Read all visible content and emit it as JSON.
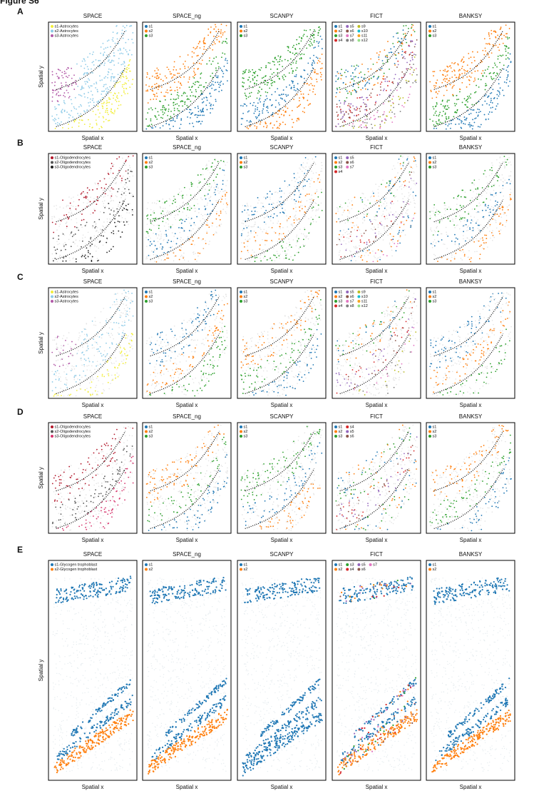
{
  "figure_label": "Figure S6",
  "x_label": "Spatial x",
  "y_label": "Spatial y",
  "rows": [
    {
      "label": "A",
      "panels": [
        {
          "title": "SPACE",
          "legend": [
            [
              {
                "name": "s1-Astrocytes",
                "color": "#f2ee3a"
              },
              {
                "name": "s2-Astrocytes",
                "color": "#8ecbe8"
              },
              {
                "name": "s3-Astrocytes",
                "color": "#b25aa8"
              }
            ]
          ]
        },
        {
          "title": "SPACE_ng",
          "legend": [
            [
              {
                "name": "s1",
                "color": "#1f77b4"
              },
              {
                "name": "s2",
                "color": "#ff7f0e"
              },
              {
                "name": "s3",
                "color": "#2ca02c"
              }
            ]
          ]
        },
        {
          "title": "SCANPY",
          "legend": [
            [
              {
                "name": "s1",
                "color": "#1f77b4"
              },
              {
                "name": "s2",
                "color": "#ff7f0e"
              },
              {
                "name": "s3",
                "color": "#2ca02c"
              }
            ]
          ]
        },
        {
          "title": "FICT",
          "legend": [
            [
              {
                "name": "s1",
                "color": "#1f77b4"
              },
              {
                "name": "s2",
                "color": "#ff7f0e"
              },
              {
                "name": "s3",
                "color": "#2ca02c"
              },
              {
                "name": "s4",
                "color": "#d62728"
              }
            ],
            [
              {
                "name": "s5",
                "color": "#9467bd"
              },
              {
                "name": "s6",
                "color": "#8c564b"
              },
              {
                "name": "s7",
                "color": "#e377c2"
              },
              {
                "name": "s8",
                "color": "#7f7f7f"
              }
            ],
            [
              {
                "name": "s9",
                "color": "#bcbd22"
              },
              {
                "name": "s10",
                "color": "#17becf"
              },
              {
                "name": "s11",
                "color": "#f5a623"
              },
              {
                "name": "s12",
                "color": "#98df8a"
              }
            ]
          ]
        },
        {
          "title": "BANKSY",
          "legend": [
            [
              {
                "name": "s1",
                "color": "#1f77b4"
              },
              {
                "name": "s2",
                "color": "#ff7f0e"
              },
              {
                "name": "s3",
                "color": "#2ca02c"
              }
            ]
          ]
        }
      ]
    },
    {
      "label": "B",
      "panels": [
        {
          "title": "SPACE",
          "legend": [
            [
              {
                "name": "s1-Oligodendrocytes",
                "color": "#b2182b"
              },
              {
                "name": "s2-Oligodendrocytes",
                "color": "#555555"
              },
              {
                "name": "s3-Oligodendrocytes",
                "color": "#222222"
              }
            ]
          ]
        },
        {
          "title": "SPACE_ng",
          "legend": [
            [
              {
                "name": "s1",
                "color": "#1f77b4"
              },
              {
                "name": "s2",
                "color": "#ff7f0e"
              },
              {
                "name": "s3",
                "color": "#2ca02c"
              }
            ]
          ]
        },
        {
          "title": "SCANPY",
          "legend": [
            [
              {
                "name": "s1",
                "color": "#1f77b4"
              },
              {
                "name": "s2",
                "color": "#ff7f0e"
              },
              {
                "name": "s3",
                "color": "#2ca02c"
              }
            ]
          ]
        },
        {
          "title": "FICT",
          "legend": [
            [
              {
                "name": "s1",
                "color": "#1f77b4"
              },
              {
                "name": "s2",
                "color": "#ff7f0e"
              },
              {
                "name": "s3",
                "color": "#2ca02c"
              },
              {
                "name": "s4",
                "color": "#d62728"
              }
            ],
            [
              {
                "name": "s5",
                "color": "#9467bd"
              },
              {
                "name": "s6",
                "color": "#8c564b"
              },
              {
                "name": "s7",
                "color": "#e377c2"
              }
            ]
          ]
        },
        {
          "title": "BANKSY",
          "legend": [
            [
              {
                "name": "s1",
                "color": "#1f77b4"
              },
              {
                "name": "s2",
                "color": "#ff7f0e"
              },
              {
                "name": "s3",
                "color": "#2ca02c"
              }
            ]
          ]
        }
      ]
    },
    {
      "label": "C",
      "panels": [
        {
          "title": "SPACE",
          "legend": [
            [
              {
                "name": "s1-Astrocytes",
                "color": "#f2ee3a"
              },
              {
                "name": "s2-Astrocytes",
                "color": "#8ecbe8"
              },
              {
                "name": "s3-Astrocytes",
                "color": "#b25aa8"
              }
            ]
          ]
        },
        {
          "title": "SPACE_ng",
          "legend": [
            [
              {
                "name": "s1",
                "color": "#1f77b4"
              },
              {
                "name": "s2",
                "color": "#ff7f0e"
              },
              {
                "name": "s3",
                "color": "#2ca02c"
              }
            ]
          ]
        },
        {
          "title": "SCANPY",
          "legend": [
            [
              {
                "name": "s1",
                "color": "#1f77b4"
              },
              {
                "name": "s2",
                "color": "#ff7f0e"
              },
              {
                "name": "s3",
                "color": "#2ca02c"
              }
            ]
          ]
        },
        {
          "title": "FICT",
          "legend": [
            [
              {
                "name": "s1",
                "color": "#1f77b4"
              },
              {
                "name": "s2",
                "color": "#ff7f0e"
              },
              {
                "name": "s3",
                "color": "#2ca02c"
              },
              {
                "name": "s4",
                "color": "#d62728"
              }
            ],
            [
              {
                "name": "s5",
                "color": "#9467bd"
              },
              {
                "name": "s6",
                "color": "#8c564b"
              },
              {
                "name": "s7",
                "color": "#e377c2"
              },
              {
                "name": "s8",
                "color": "#7f7f7f"
              }
            ],
            [
              {
                "name": "s9",
                "color": "#bcbd22"
              },
              {
                "name": "s10",
                "color": "#17becf"
              },
              {
                "name": "s11",
                "color": "#f5a623"
              },
              {
                "name": "s12",
                "color": "#98df8a"
              }
            ]
          ]
        },
        {
          "title": "BANKSY",
          "legend": [
            [
              {
                "name": "s1",
                "color": "#1f77b4"
              },
              {
                "name": "s2",
                "color": "#ff7f0e"
              },
              {
                "name": "s3",
                "color": "#2ca02c"
              }
            ]
          ]
        }
      ]
    },
    {
      "label": "D",
      "panels": [
        {
          "title": "SPACE",
          "legend": [
            [
              {
                "name": "s1-Oligodendrocytes",
                "color": "#b2182b"
              },
              {
                "name": "s2-Oligodendrocytes",
                "color": "#555555"
              },
              {
                "name": "s3-Oligodendrocytes",
                "color": "#d6336c"
              }
            ]
          ]
        },
        {
          "title": "SPACE_ng",
          "legend": [
            [
              {
                "name": "s1",
                "color": "#1f77b4"
              },
              {
                "name": "s2",
                "color": "#ff7f0e"
              },
              {
                "name": "s3",
                "color": "#2ca02c"
              }
            ]
          ]
        },
        {
          "title": "SCANPY",
          "legend": [
            [
              {
                "name": "s1",
                "color": "#1f77b4"
              },
              {
                "name": "s2",
                "color": "#ff7f0e"
              },
              {
                "name": "s3",
                "color": "#2ca02c"
              }
            ]
          ]
        },
        {
          "title": "FICT",
          "legend": [
            [
              {
                "name": "s1",
                "color": "#1f77b4"
              },
              {
                "name": "s2",
                "color": "#ff7f0e"
              },
              {
                "name": "s3",
                "color": "#2ca02c"
              }
            ],
            [
              {
                "name": "s4",
                "color": "#d62728"
              },
              {
                "name": "s5",
                "color": "#9467bd"
              },
              {
                "name": "s6",
                "color": "#8c564b"
              }
            ]
          ]
        },
        {
          "title": "BANKSY",
          "legend": [
            [
              {
                "name": "s1",
                "color": "#1f77b4"
              },
              {
                "name": "s2",
                "color": "#ff7f0e"
              },
              {
                "name": "s3",
                "color": "#2ca02c"
              }
            ]
          ]
        }
      ]
    },
    {
      "label": "E",
      "panels": [
        {
          "title": "SPACE",
          "legend": [
            [
              {
                "name": "s1-Glycogen trophoblast",
                "color": "#1f77b4"
              },
              {
                "name": "s2-Glycogen trophoblast",
                "color": "#ff7f0e"
              }
            ]
          ]
        },
        {
          "title": "SPACE_ng",
          "legend": [
            [
              {
                "name": "s1",
                "color": "#1f77b4"
              },
              {
                "name": "s2",
                "color": "#ff7f0e"
              }
            ]
          ]
        },
        {
          "title": "SCANPY",
          "legend": [
            [
              {
                "name": "s1",
                "color": "#1f77b4"
              },
              {
                "name": "s2",
                "color": "#ff7f0e"
              }
            ]
          ]
        },
        {
          "title": "FICT",
          "legend": [
            [
              {
                "name": "s1",
                "color": "#1f77b4"
              },
              {
                "name": "s2",
                "color": "#ff7f0e"
              }
            ],
            [
              {
                "name": "s3",
                "color": "#2ca02c"
              },
              {
                "name": "s4",
                "color": "#d62728"
              }
            ],
            [
              {
                "name": "s5",
                "color": "#9467bd"
              },
              {
                "name": "s6",
                "color": "#8c564b"
              }
            ],
            [
              {
                "name": "s7",
                "color": "#e377c2"
              }
            ]
          ]
        },
        {
          "title": "BANKSY",
          "legend": [
            [
              {
                "name": "s1",
                "color": "#1f77b4"
              },
              {
                "name": "s2",
                "color": "#ff7f0e"
              }
            ]
          ]
        }
      ]
    }
  ]
}
